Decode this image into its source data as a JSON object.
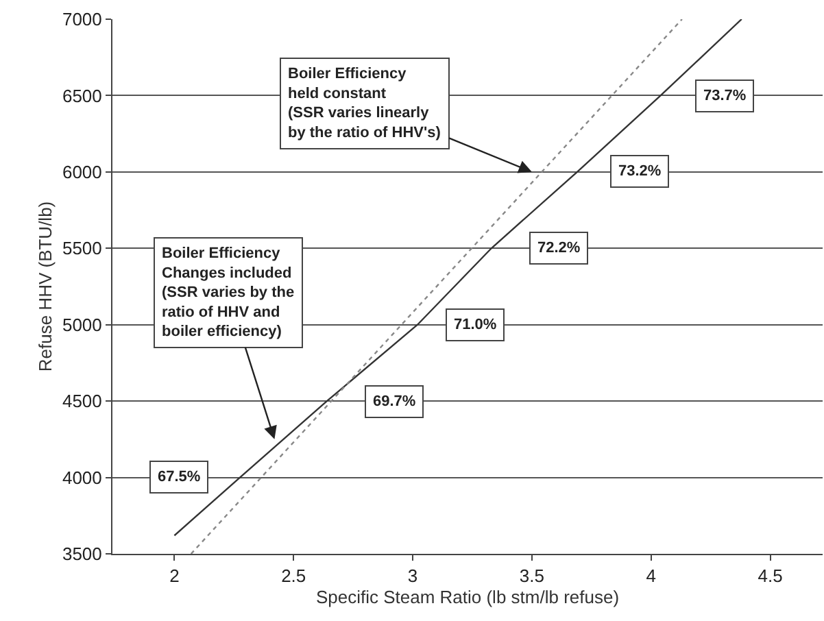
{
  "chart_data": {
    "type": "line",
    "xlabel": "Specific Steam Ratio (lb stm/lb refuse)",
    "ylabel": "Refuse HHV (BTU/lb)",
    "xlim": [
      1.74,
      4.72
    ],
    "xticks": [
      2,
      2.5,
      3,
      3.5,
      4,
      4.5
    ],
    "ylim": [
      3500,
      7000
    ],
    "yticks": [
      3500,
      4000,
      4500,
      5000,
      5500,
      6000,
      6500,
      7000
    ],
    "grid": "y",
    "marker": "none",
    "series": [
      {
        "color": "#333333",
        "line_style": "solid",
        "x": [
          2.0,
          2.275,
          2.64,
          3.02,
          3.33,
          3.69,
          4.04,
          4.38
        ],
        "values": [
          3620,
          4000,
          4500,
          5000,
          5500,
          6000,
          6500,
          7000
        ]
      },
      {
        "color": "#888888",
        "line_style": "dotted",
        "x": [
          2.07,
          4.13
        ],
        "values": [
          3500,
          7000
        ]
      }
    ],
    "annotations": [
      {
        "text": "Boiler Efficiency\nheld constant\n(SSR varies linearly\nby the ratio of HHV's)",
        "x": 3.5,
        "y": 6000
      },
      {
        "text": "Boiler Efficiency\nChanges included\n(SSR varies by the\nratio of HHV and\nboiler efficiency)",
        "x": 2.42,
        "y": 4250
      },
      {
        "text": "67.5%",
        "x": 2.02,
        "y": 4000
      },
      {
        "text": "69.7%",
        "x": 2.92,
        "y": 4500
      },
      {
        "text": "71.0%",
        "x": 3.26,
        "y": 5000
      },
      {
        "text": "72.2%",
        "x": 3.61,
        "y": 5500
      },
      {
        "text": "73.2%",
        "x": 3.95,
        "y": 6000
      },
      {
        "text": "73.7%",
        "x": 4.31,
        "y": 6500
      }
    ]
  }
}
